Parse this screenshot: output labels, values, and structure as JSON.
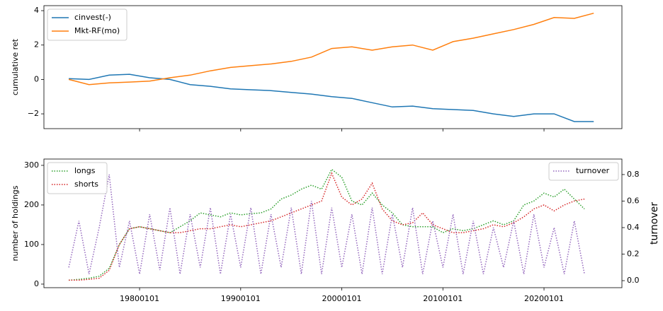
{
  "chart_data": [
    {
      "type": "line",
      "ylabel": "cumulative ret",
      "legend": "upper left",
      "x": [
        "19730101",
        "19750101",
        "19770101",
        "19790101",
        "19810101",
        "19830101",
        "19850101",
        "19870101",
        "19890101",
        "19910101",
        "19930101",
        "19950101",
        "19970101",
        "19990101",
        "20010101",
        "20030101",
        "20050101",
        "20070101",
        "20090101",
        "20110101",
        "20130101",
        "20150101",
        "20170101",
        "20190101",
        "20210101",
        "20230101",
        "20241201"
      ],
      "xlim": [
        "19700715",
        "20270915"
      ],
      "ylim": [
        -2.86,
        4.29
      ],
      "yticks": [
        {
          "value": -2,
          "label": "−2"
        },
        0,
        2,
        4
      ],
      "series": [
        {
          "name": "cinvest(-)",
          "color": "#1f77b4",
          "values": [
            0.05,
            0.0,
            0.25,
            0.3,
            0.1,
            0.0,
            -0.3,
            -0.4,
            -0.55,
            -0.6,
            -0.65,
            -0.75,
            -0.85,
            -1.0,
            -1.1,
            -1.35,
            -1.6,
            -1.55,
            -1.7,
            -1.75,
            -1.8,
            -2.0,
            -2.15,
            -2.0,
            -2.0,
            -2.45,
            -2.45
          ]
        },
        {
          "name": "Mkt-RF(mo)",
          "color": "#ff7f0e",
          "values": [
            0.0,
            -0.3,
            -0.2,
            -0.15,
            -0.1,
            0.1,
            0.25,
            0.5,
            0.7,
            0.8,
            0.9,
            1.05,
            1.3,
            1.8,
            1.9,
            1.7,
            1.9,
            2.0,
            1.7,
            2.2,
            2.4,
            2.65,
            2.9,
            3.2,
            3.6,
            3.55,
            3.85
          ]
        }
      ]
    },
    {
      "type": "line",
      "ylabel": "number of holdings",
      "y2label": "turnover",
      "legend": "upper left",
      "legend2": "upper right",
      "x": [
        "19730101",
        "19740101",
        "19750101",
        "19760101",
        "19770101",
        "19780101",
        "19790101",
        "19800101",
        "19810101",
        "19820101",
        "19830101",
        "19840101",
        "19850101",
        "19860101",
        "19870101",
        "19880101",
        "19890101",
        "19900101",
        "19910101",
        "19920101",
        "19930101",
        "19940101",
        "19950101",
        "19960101",
        "19970101",
        "19980101",
        "19990101",
        "20000101",
        "20010101",
        "20020101",
        "20030101",
        "20040101",
        "20050101",
        "20060101",
        "20070101",
        "20080101",
        "20090101",
        "20100101",
        "20110101",
        "20120101",
        "20130101",
        "20140101",
        "20150101",
        "20160101",
        "20170101",
        "20180101",
        "20190101",
        "20200101",
        "20210101",
        "20220101",
        "20230101",
        "20240101"
      ],
      "xlim": [
        "19700715",
        "20270915"
      ],
      "xticks": [
        "19800101",
        "19900101",
        "20000101",
        "20100101",
        "20200101"
      ],
      "ylim": [
        -9,
        316
      ],
      "yticks": [
        0,
        100,
        200,
        300
      ],
      "y2lim": [
        -0.053,
        0.917
      ],
      "y2ticks": [
        {
          "value": 0,
          "label": "0.0"
        },
        {
          "value": 0.2,
          "label": "0.2"
        },
        {
          "value": 0.4,
          "label": "0.4"
        },
        {
          "value": 0.6,
          "label": "0.6"
        },
        {
          "value": 0.8,
          "label": "0.8"
        }
      ],
      "series": [
        {
          "name": "longs",
          "color": "#2ca02c",
          "values": [
            10,
            12,
            15,
            20,
            40,
            100,
            140,
            145,
            140,
            135,
            130,
            145,
            160,
            180,
            175,
            170,
            180,
            175,
            178,
            180,
            190,
            215,
            225,
            240,
            250,
            240,
            290,
            270,
            210,
            200,
            230,
            200,
            180,
            150,
            145,
            145,
            145,
            130,
            140,
            135,
            140,
            150,
            160,
            150,
            160,
            200,
            210,
            230,
            220,
            240,
            215,
            190
          ]
        },
        {
          "name": "shorts",
          "color": "#d62728",
          "values": [
            10,
            10,
            12,
            15,
            35,
            100,
            140,
            145,
            140,
            135,
            130,
            130,
            135,
            140,
            140,
            145,
            150,
            145,
            150,
            155,
            160,
            170,
            180,
            190,
            200,
            210,
            280,
            220,
            200,
            215,
            255,
            190,
            160,
            150,
            155,
            180,
            150,
            140,
            130,
            130,
            135,
            140,
            150,
            145,
            155,
            170,
            190,
            200,
            185,
            200,
            210,
            215
          ]
        },
        {
          "name": "turnover",
          "color": "#9467bd",
          "axis": "y2",
          "values": [
            0.1,
            0.45,
            0.05,
            0.4,
            0.8,
            0.1,
            0.45,
            0.05,
            0.5,
            0.08,
            0.55,
            0.05,
            0.5,
            0.1,
            0.55,
            0.05,
            0.5,
            0.1,
            0.55,
            0.05,
            0.5,
            0.1,
            0.55,
            0.05,
            0.6,
            0.05,
            0.55,
            0.1,
            0.5,
            0.05,
            0.55,
            0.05,
            0.5,
            0.1,
            0.55,
            0.05,
            0.45,
            0.1,
            0.5,
            0.05,
            0.45,
            0.05,
            0.4,
            0.1,
            0.45,
            0.05,
            0.5,
            0.1,
            0.4,
            0.05,
            0.45,
            0.05
          ]
        }
      ]
    }
  ]
}
